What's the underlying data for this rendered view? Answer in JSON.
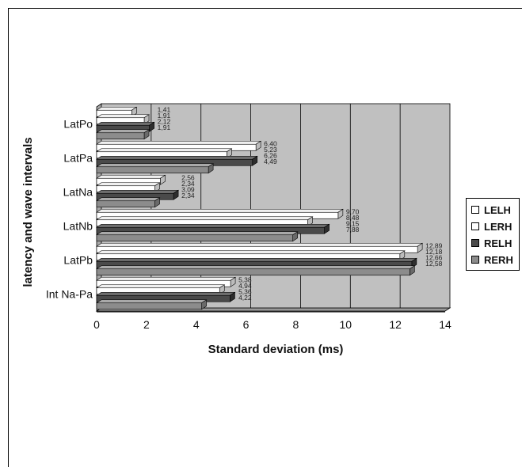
{
  "chart_data": {
    "type": "bar",
    "orientation": "horizontal",
    "title": "",
    "xlabel": "Standard deviation (ms)",
    "ylabel": "latency and wave intervals",
    "xlim": [
      0,
      14
    ],
    "xticks": [
      "0",
      "2",
      "4",
      "6",
      "8",
      "10",
      "12",
      "14"
    ],
    "grid": "vertical",
    "legend_position": "right",
    "categories": [
      "LatPo",
      "LatPa",
      "LatNa",
      "LatNb",
      "LatPb",
      "Int Na-Pa"
    ],
    "series": [
      {
        "name": "LELH",
        "color": "#ffffff",
        "values": [
          1.41,
          6.4,
          2.56,
          9.7,
          12.89,
          5.38
        ],
        "labels": [
          "1,41",
          "6,40",
          "2,56",
          "9,70",
          "12,89",
          "5,38"
        ]
      },
      {
        "name": "LERH",
        "color": "#ffffff",
        "values": [
          1.91,
          5.23,
          2.34,
          8.48,
          12.18,
          4.94
        ],
        "labels": [
          "1,91",
          "5,23",
          "2,34",
          "8,48",
          "12,18",
          "4,94"
        ]
      },
      {
        "name": "RELH",
        "color": "#4a4a4a",
        "values": [
          2.12,
          6.26,
          3.09,
          9.15,
          12.66,
          5.36
        ],
        "labels": [
          "2,12",
          "6,26",
          "3,09",
          "9,15",
          "12,66",
          "5,36"
        ]
      },
      {
        "name": "RERH",
        "color": "#8c8c8c",
        "values": [
          1.91,
          4.49,
          2.34,
          7.88,
          12.58,
          4.22
        ],
        "labels": [
          "1,91",
          "4,49",
          "2,34",
          "7,88",
          "12,58",
          "4,22"
        ]
      }
    ]
  }
}
